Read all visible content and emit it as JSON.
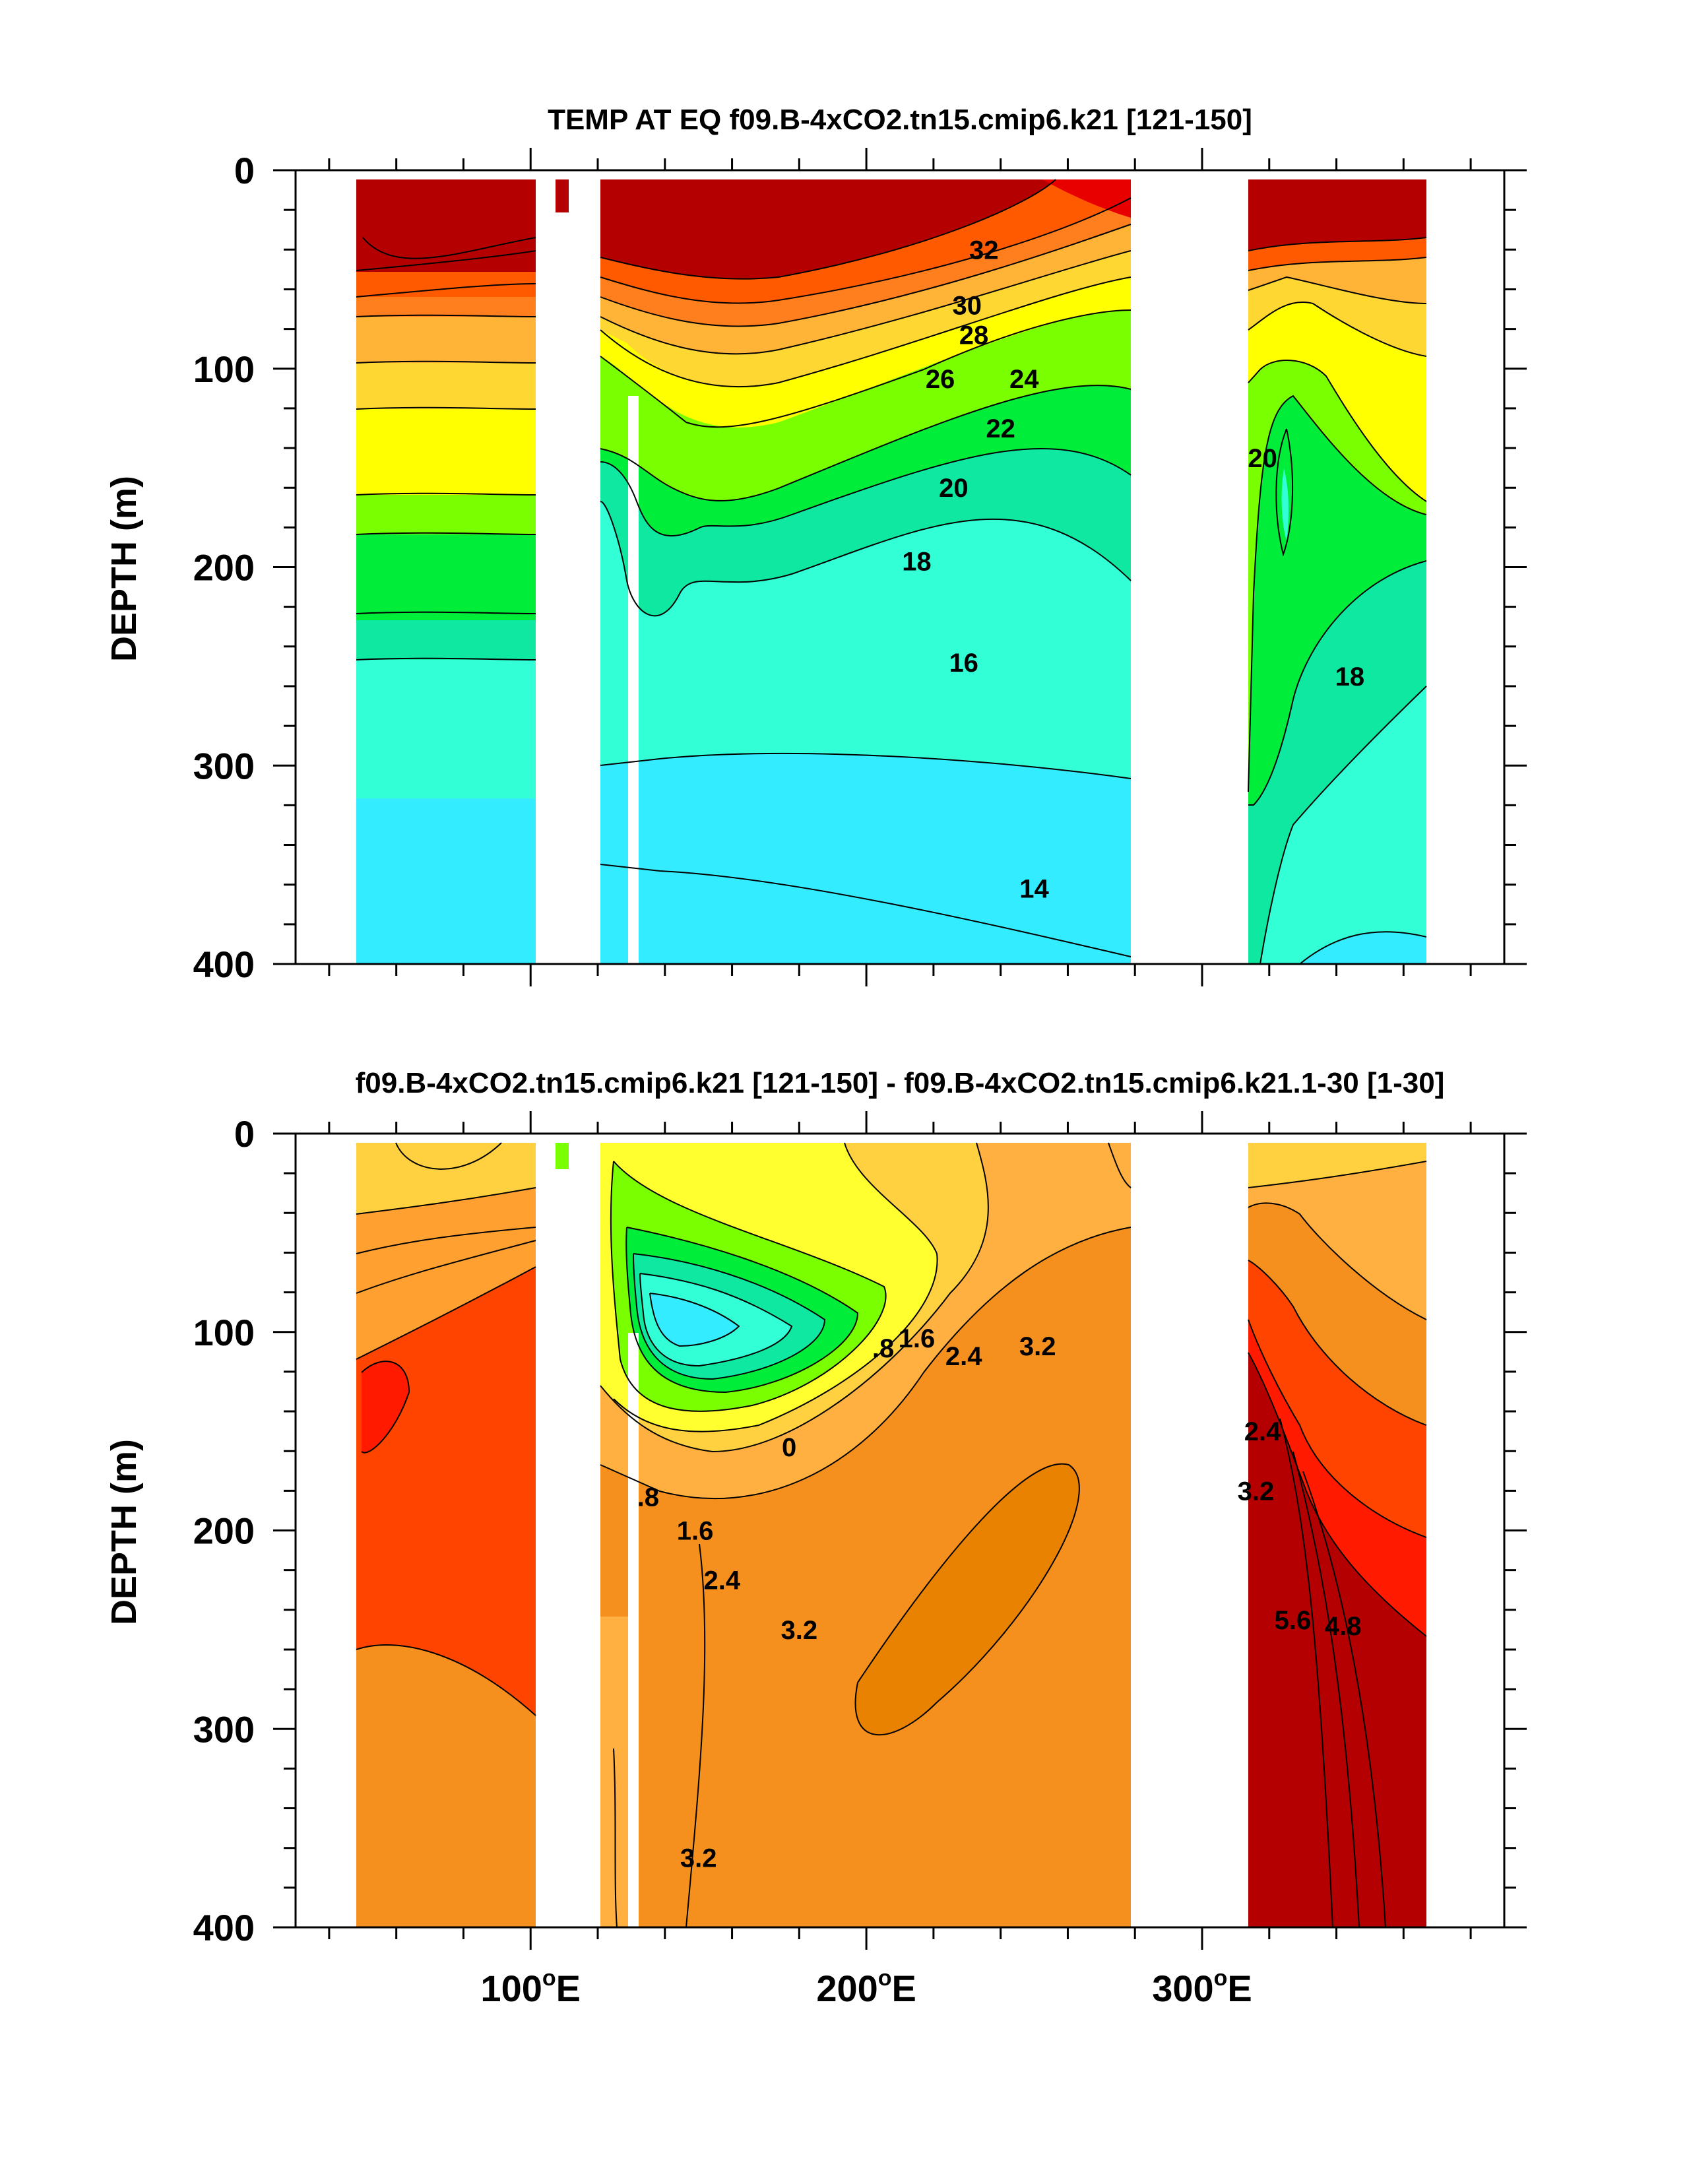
{
  "chart_data": [
    {
      "type": "contour",
      "panel": "top",
      "title": "TEMP AT EQ f09.B-4xCO2.tn15.cmip6.k21 [121-150]",
      "xlabel": "",
      "ylabel": "DEPTH (m)",
      "xlim": [
        30,
        390
      ],
      "ylim": [
        400,
        0
      ],
      "yticks": [
        "0",
        "100",
        "200",
        "300",
        "400"
      ],
      "ytick_values": [
        0,
        100,
        200,
        300,
        400
      ],
      "contour_labels": [
        {
          "text": "32",
          "lon": 235,
          "depth": 40
        },
        {
          "text": "30",
          "lon": 230,
          "depth": 68
        },
        {
          "text": "28",
          "lon": 232,
          "depth": 83
        },
        {
          "text": "26",
          "lon": 222,
          "depth": 105
        },
        {
          "text": "24",
          "lon": 247,
          "depth": 105
        },
        {
          "text": "22",
          "lon": 240,
          "depth": 130
        },
        {
          "text": "20",
          "lon": 226,
          "depth": 160
        },
        {
          "text": "20",
          "lon": 318,
          "depth": 145
        },
        {
          "text": "18",
          "lon": 215,
          "depth": 197
        },
        {
          "text": "16",
          "lon": 229,
          "depth": 248
        },
        {
          "text": "18",
          "lon": 344,
          "depth": 255
        },
        {
          "text": "14",
          "lon": 250,
          "depth": 362
        }
      ]
    },
    {
      "type": "contour",
      "panel": "bottom",
      "title": "f09.B-4xCO2.tn15.cmip6.k21 [121-150] - f09.B-4xCO2.tn15.cmip6.k21.1-30 [1-30]",
      "xlabel": "",
      "ylabel": "DEPTH (m)",
      "xlim": [
        30,
        390
      ],
      "ylim": [
        400,
        0
      ],
      "xticks": [
        "100",
        "200",
        "300"
      ],
      "xtick_values": [
        100,
        200,
        300
      ],
      "xtick_suffix": "E",
      "yticks": [
        "0",
        "100",
        "200",
        "300",
        "400"
      ],
      "ytick_values": [
        0,
        100,
        200,
        300,
        400
      ],
      "contour_labels": [
        {
          "text": "1.6",
          "lon": 215,
          "depth": 103
        },
        {
          "text": ".8",
          "lon": 205,
          "depth": 108
        },
        {
          "text": "2.4",
          "lon": 229,
          "depth": 112
        },
        {
          "text": "3.2",
          "lon": 251,
          "depth": 107
        },
        {
          "text": "0",
          "lon": 177,
          "depth": 158
        },
        {
          "text": ".8",
          "lon": 135,
          "depth": 183
        },
        {
          "text": "1.6",
          "lon": 149,
          "depth": 200
        },
        {
          "text": "2.4",
          "lon": 157,
          "depth": 225
        },
        {
          "text": "3.2",
          "lon": 180,
          "depth": 250
        },
        {
          "text": "3.2",
          "lon": 150,
          "depth": 365
        },
        {
          "text": "2.4",
          "lon": 318,
          "depth": 150
        },
        {
          "text": "3.2",
          "lon": 316,
          "depth": 180
        },
        {
          "text": "5.6",
          "lon": 327,
          "depth": 245
        },
        {
          "text": "4.8",
          "lon": 342,
          "depth": 248
        }
      ]
    }
  ]
}
